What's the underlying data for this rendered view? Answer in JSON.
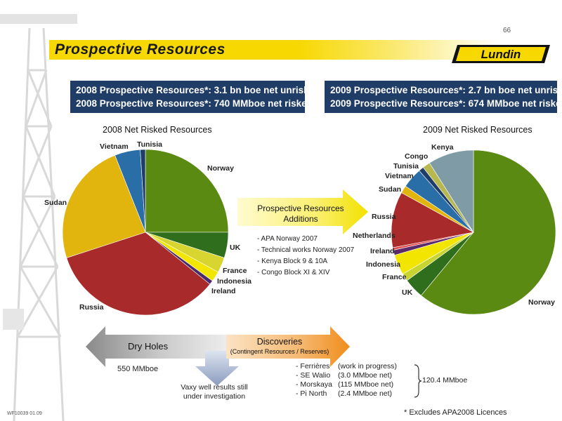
{
  "page_number": "66",
  "title": "Prospective Resources",
  "logo_text": "Lundin",
  "summary_2008": {
    "line1": "2008 Prospective Resources*:  3.1 bn boe net unrisked",
    "line2": "2008 Prospective Resources*:  740 MMboe net risked"
  },
  "summary_2009": {
    "line1": "2009 Prospective Resources*:  2.7 bn boe net unrisked",
    "line2": "2009 Prospective Resources*:  674 MMboe net risked"
  },
  "arrow_center": {
    "line1": "Prospective Resources",
    "line2": "Additions"
  },
  "additions": [
    "- APA Norway 2007",
    "- Technical works Norway 2007",
    "- Kenya Block 9 & 10A",
    "- Congo Block XI & XIV"
  ],
  "dry_holes": {
    "label": "Dry Holes",
    "value": "550 MMboe"
  },
  "vaxy_note": {
    "line1": "Vaxy well results still",
    "line2": "under investigation"
  },
  "discoveries": {
    "label": "Discoveries",
    "sub": "(Contingent Resources / Reserves)",
    "items": [
      {
        "name": "- Ferrières",
        "detail": "(work in progress)"
      },
      {
        "name": "- SE Walio",
        "detail": "(3.0 MMboe net)"
      },
      {
        "name": "- Morskaya",
        "detail": "(115 MMboe net)"
      },
      {
        "name": "- Pi North",
        "detail": "(2.4 MMboe net)"
      }
    ],
    "total": "120.4 MMboe"
  },
  "footnote": "* Excludes APA2008 Licences",
  "ref_code": "WF10039 01.09",
  "chart_data": [
    {
      "type": "pie",
      "title": "2008 Net Risked Resources",
      "categories": [
        "Norway",
        "UK",
        "France",
        "Indonesia",
        "Ireland",
        "Russia",
        "Sudan",
        "Vietnam",
        "Tunisia"
      ],
      "values": [
        25.0,
        5.0,
        3.0,
        2.0,
        0.8,
        34.2,
        24.0,
        5.0,
        1.0
      ],
      "colors": [
        "#5a8a12",
        "#2f6e1c",
        "#d8d430",
        "#f2e600",
        "#4a2a6a",
        "#a82a2a",
        "#e2b40e",
        "#2a6ea8",
        "#1f3d66"
      ]
    },
    {
      "type": "pie",
      "title": "2009 Net Risked Resources",
      "categories": [
        "Norway",
        "UK",
        "France",
        "Indonesia",
        "Ireland",
        "Netherlands",
        "Russia",
        "Sudan",
        "Vietnam",
        "Tunisia",
        "Congo",
        "Kenya"
      ],
      "values": [
        61.0,
        4.0,
        1.5,
        4.0,
        1.0,
        0.5,
        11.0,
        1.5,
        4.0,
        1.0,
        1.5,
        9.0
      ],
      "colors": [
        "#5a8a12",
        "#2f6e1c",
        "#c8d430",
        "#f2e600",
        "#5a2a6a",
        "#e05050",
        "#a82a2a",
        "#e2b40e",
        "#2a6ea8",
        "#1f3d66",
        "#b8b850",
        "#7f9ca6"
      ]
    }
  ]
}
